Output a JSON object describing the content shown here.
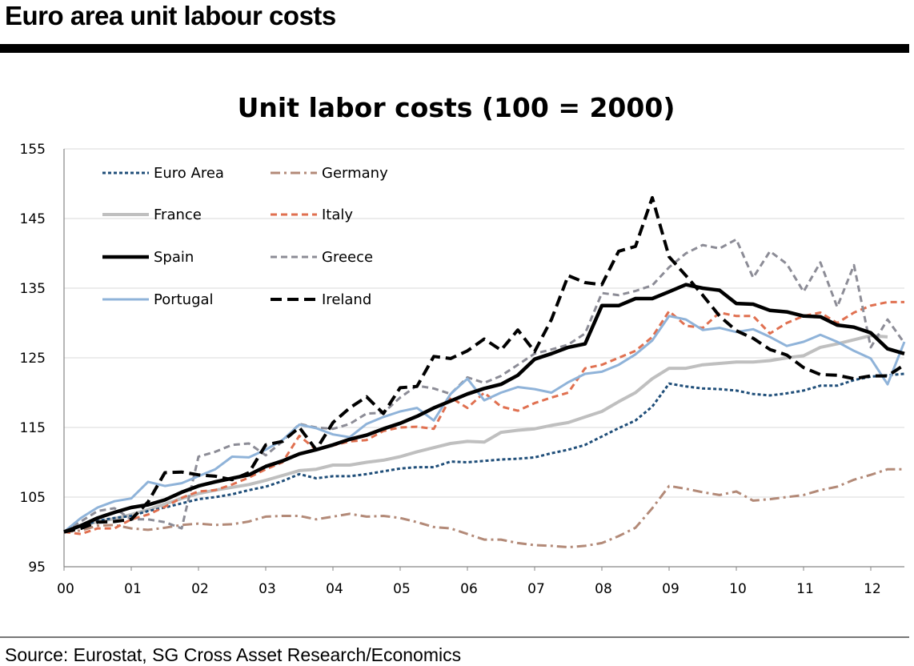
{
  "header": {
    "title": "Euro area unit labour costs"
  },
  "footer": {
    "source": "Source: Eurostat, SG Cross Asset Research/Economics"
  },
  "chart_data": {
    "type": "line",
    "title": "Unit labor costs (100 = 2000)",
    "xlabel": "",
    "ylabel": "",
    "xlim": [
      0,
      12.5
    ],
    "ylim": [
      95,
      155
    ],
    "y_ticks": [
      95,
      105,
      115,
      125,
      135,
      145,
      155
    ],
    "x_ticks": [
      0,
      1,
      2,
      3,
      4,
      5,
      6,
      7,
      8,
      9,
      10,
      11,
      12
    ],
    "x_tick_labels": [
      "00",
      "01",
      "02",
      "03",
      "04",
      "05",
      "06",
      "07",
      "08",
      "09",
      "10",
      "11",
      "12"
    ],
    "grid": "horizontal",
    "legend": "top-left",
    "series": [
      {
        "name": "Euro Area",
        "color": "#1f4e79",
        "style": "dotted",
        "width": 3,
        "x": [
          0,
          0.25,
          0.5,
          0.75,
          1,
          1.25,
          1.5,
          1.75,
          2,
          2.25,
          2.5,
          2.75,
          3,
          3.25,
          3.5,
          3.75,
          4,
          4.25,
          4.5,
          4.75,
          5,
          5.25,
          5.5,
          5.75,
          6,
          6.25,
          6.5,
          6.75,
          7,
          7.25,
          7.5,
          7.75,
          8,
          8.25,
          8.5,
          8.75,
          9,
          9.25,
          9.5,
          9.75,
          10,
          10.25,
          10.5,
          10.75,
          11,
          11.25,
          11.5,
          11.75,
          12,
          12.25,
          12.5
        ],
        "y": [
          100,
          100.8,
          101.6,
          102,
          102.3,
          103,
          103.5,
          104.1,
          104.7,
          105,
          105.4,
          106,
          106.5,
          107.3,
          108.3,
          107.7,
          108,
          108,
          108.3,
          108.7,
          109.1,
          109.3,
          109.3,
          110.1,
          110,
          110.2,
          110.4,
          110.5,
          110.7,
          111.3,
          111.8,
          112.5,
          113.7,
          114.9,
          116,
          118,
          121.3,
          120.9,
          120.6,
          120.5,
          120.3,
          119.8,
          119.6,
          119.9,
          120.3,
          121,
          121,
          121.8,
          122.3,
          122.5,
          122.7
        ]
      },
      {
        "name": "Germany",
        "color": "#b38a78",
        "style": "dashdot",
        "width": 3,
        "x": [
          0,
          0.25,
          0.5,
          0.75,
          1,
          1.25,
          1.5,
          1.75,
          2,
          2.25,
          2.5,
          2.75,
          3,
          3.25,
          3.5,
          3.75,
          4,
          4.25,
          4.5,
          4.75,
          5,
          5.25,
          5.5,
          5.75,
          6,
          6.25,
          6.5,
          6.75,
          7,
          7.25,
          7.5,
          7.75,
          8,
          8.25,
          8.5,
          8.75,
          9,
          9.25,
          9.5,
          9.75,
          10,
          10.25,
          10.5,
          10.75,
          11,
          11.25,
          11.5,
          11.75,
          12,
          12.25,
          12.5
        ],
        "y": [
          100,
          100.2,
          100.9,
          101,
          100.5,
          100.3,
          100.6,
          101,
          101.2,
          101,
          101.1,
          101.5,
          102.2,
          102.3,
          102.3,
          101.8,
          102.2,
          102.6,
          102.2,
          102.3,
          102,
          101.4,
          100.7,
          100.5,
          99.7,
          98.9,
          98.9,
          98.4,
          98.1,
          98,
          97.8,
          98,
          98.4,
          99.4,
          100.6,
          103.4,
          106.6,
          106.2,
          105.7,
          105.3,
          105.8,
          104.5,
          104.7,
          105,
          105.3,
          106,
          106.5,
          107.5,
          108.2,
          109,
          109
        ]
      },
      {
        "name": "France",
        "color": "#bfbfbf",
        "style": "solid",
        "width": 4,
        "x": [
          0,
          0.25,
          0.5,
          0.75,
          1,
          1.25,
          1.5,
          1.75,
          2,
          2.25,
          2.5,
          2.75,
          3,
          3.25,
          3.5,
          3.75,
          4,
          4.25,
          4.5,
          4.75,
          5,
          5.25,
          5.5,
          5.75,
          6,
          6.25,
          6.5,
          6.75,
          7,
          7.25,
          7.5,
          7.75,
          8,
          8.25,
          8.5,
          8.75,
          9,
          9.25,
          9.5,
          9.75,
          10,
          10.25,
          10.5,
          10.75,
          11,
          11.25,
          11.5,
          11.75,
          12,
          12.25
        ],
        "y": [
          100,
          100.8,
          101.5,
          101.9,
          102.5,
          103.2,
          104,
          104.8,
          105.5,
          106,
          106.4,
          106.8,
          107.4,
          108.1,
          108.8,
          109,
          109.6,
          109.6,
          110,
          110.3,
          110.8,
          111.5,
          112.1,
          112.7,
          113,
          112.9,
          114.3,
          114.6,
          114.8,
          115.3,
          115.7,
          116.5,
          117.3,
          118.7,
          120,
          122,
          123.5,
          123.5,
          124,
          124.2,
          124.4,
          124.4,
          124.6,
          125,
          125.3,
          126.5,
          127,
          127.6,
          128.2,
          128
        ]
      },
      {
        "name": "Italy",
        "color": "#e07050",
        "style": "dashed",
        "width": 3,
        "x": [
          0,
          0.25,
          0.5,
          0.75,
          1,
          1.25,
          1.5,
          1.75,
          2,
          2.25,
          2.5,
          2.75,
          3,
          3.25,
          3.5,
          3.75,
          4,
          4.25,
          4.5,
          4.75,
          5,
          5.25,
          5.5,
          5.75,
          6,
          6.25,
          6.5,
          6.75,
          7,
          7.25,
          7.5,
          7.75,
          8,
          8.25,
          8.5,
          8.75,
          9,
          9.25,
          9.5,
          9.75,
          10,
          10.25,
          10.5,
          10.75,
          11,
          11.25,
          11.5,
          11.75,
          12,
          12.25,
          12.5
        ],
        "y": [
          100,
          99.7,
          100.5,
          100.5,
          101.8,
          102.5,
          103.6,
          104.9,
          105.8,
          106,
          106.8,
          107.8,
          109,
          110,
          113.8,
          111.8,
          112.4,
          113,
          113.2,
          114.5,
          115,
          115.1,
          114.8,
          119.3,
          117.8,
          120,
          118,
          117.4,
          118.5,
          119.3,
          120,
          123.5,
          124,
          125,
          126,
          128,
          131.7,
          129.6,
          129.3,
          131.5,
          131,
          131,
          128.5,
          130,
          131,
          131.5,
          130,
          131.5,
          132.5,
          133,
          133
        ]
      },
      {
        "name": "Spain",
        "color": "#000000",
        "style": "solid",
        "width": 4.5,
        "x": [
          0,
          0.25,
          0.5,
          0.75,
          1,
          1.25,
          1.5,
          1.75,
          2,
          2.25,
          2.5,
          2.75,
          3,
          3.25,
          3.5,
          3.75,
          4,
          4.25,
          4.5,
          4.75,
          5,
          5.25,
          5.5,
          5.75,
          6,
          6.25,
          6.5,
          6.75,
          7,
          7.25,
          7.5,
          7.75,
          8,
          8.25,
          8.5,
          8.75,
          9,
          9.25,
          9.5,
          9.75,
          10,
          10.25,
          10.5,
          10.75,
          11,
          11.25,
          11.5,
          11.75,
          12,
          12.25,
          12.5
        ],
        "y": [
          100,
          100.9,
          102,
          102.8,
          103.5,
          103.9,
          104.6,
          105.7,
          106.6,
          107.2,
          107.7,
          108.2,
          109.4,
          110.2,
          111.2,
          111.8,
          112.5,
          113.3,
          113.9,
          114.8,
          115.6,
          116.6,
          117.8,
          118.8,
          119.8,
          120.6,
          121.2,
          122.5,
          124.8,
          125.6,
          126.5,
          127,
          132.5,
          132.5,
          133.5,
          133.5,
          134.5,
          135.5,
          135,
          134.7,
          132.8,
          132.7,
          131.8,
          131.6,
          131,
          130.9,
          129.7,
          129.4,
          128.6,
          126.3,
          125.6
        ]
      },
      {
        "name": "Greece",
        "color": "#8c8c96",
        "style": "dashed",
        "width": 3,
        "x": [
          0,
          0.25,
          0.5,
          0.75,
          1,
          1.25,
          1.5,
          1.75,
          2,
          2.25,
          2.5,
          2.75,
          3,
          3.25,
          3.5,
          3.75,
          4,
          4.25,
          4.5,
          4.75,
          5,
          5.25,
          5.5,
          5.75,
          6,
          6.25,
          6.5,
          6.75,
          7,
          7.25,
          7.5,
          7.75,
          8,
          8.25,
          8.5,
          8.75,
          9,
          9.25,
          9.5,
          9.75,
          10,
          10.25,
          10.5,
          10.75,
          11,
          11.25,
          11.5,
          11.75,
          12,
          12.25,
          12.5
        ],
        "y": [
          100,
          101.5,
          103,
          103.4,
          101.8,
          101.8,
          101.4,
          100.5,
          110.8,
          111.5,
          112.5,
          112.7,
          111,
          113,
          115.5,
          115,
          114.8,
          115.5,
          117,
          117.1,
          119.3,
          121,
          120.6,
          119.8,
          122.2,
          121.4,
          122.4,
          124,
          125.6,
          126.2,
          126.9,
          128.5,
          134.3,
          134,
          134.6,
          135.4,
          138,
          140,
          141.2,
          140.7,
          142,
          136.5,
          140.3,
          138.5,
          134.5,
          138.7,
          132.3,
          138.3,
          126.5,
          130.5,
          127.1
        ]
      },
      {
        "name": "Portugal",
        "color": "#8fb3d9",
        "style": "solid",
        "width": 3,
        "x": [
          0,
          0.25,
          0.5,
          0.75,
          1,
          1.25,
          1.5,
          1.75,
          2,
          2.25,
          2.5,
          2.75,
          3,
          3.25,
          3.5,
          3.75,
          4,
          4.25,
          4.5,
          4.75,
          5,
          5.25,
          5.5,
          5.75,
          6,
          6.25,
          6.5,
          6.75,
          7,
          7.25,
          7.5,
          7.75,
          8,
          8.25,
          8.5,
          8.75,
          9,
          9.25,
          9.5,
          9.75,
          10,
          10.25,
          10.5,
          10.75,
          11,
          11.25,
          11.5,
          11.75,
          12,
          12.25,
          12.5
        ],
        "y": [
          100,
          102,
          103.5,
          104.4,
          104.8,
          107.2,
          106.6,
          107,
          108,
          109,
          110.8,
          110.7,
          111.8,
          113.2,
          115.4,
          114.9,
          114,
          113.6,
          115.5,
          116.5,
          117.3,
          117.8,
          116,
          119.8,
          122,
          118.9,
          120,
          120.8,
          120.5,
          120,
          121.5,
          122.7,
          123,
          124,
          125.5,
          127.5,
          131,
          130.5,
          129,
          129.3,
          128.7,
          129.1,
          128,
          126.7,
          127.3,
          128.3,
          127.3,
          126,
          124.9,
          121.2,
          127.3
        ]
      },
      {
        "name": "Ireland",
        "color": "#000000",
        "style": "dashed",
        "width": 4,
        "x": [
          0,
          0.25,
          0.5,
          0.75,
          1,
          1.25,
          1.5,
          1.75,
          2,
          2.25,
          2.5,
          2.75,
          3,
          3.25,
          3.5,
          3.75,
          4,
          4.25,
          4.5,
          4.75,
          5,
          5.25,
          5.5,
          5.75,
          6,
          6.25,
          6.5,
          6.75,
          7,
          7.25,
          7.5,
          7.75,
          8,
          8.25,
          8.5,
          8.75,
          9,
          9.25,
          9.5,
          9.75,
          10,
          10.25,
          10.5,
          10.75,
          11,
          11.25,
          11.5,
          11.75,
          12,
          12.25,
          12.5
        ],
        "y": [
          100,
          100.5,
          101.4,
          101.5,
          101.8,
          104.3,
          108.5,
          108.6,
          108.2,
          108,
          107.5,
          108.5,
          112.5,
          113,
          115,
          111.8,
          115.7,
          117.8,
          119.4,
          117,
          120.7,
          120.9,
          125.2,
          124.9,
          126,
          127.7,
          126.1,
          129,
          125.9,
          130.5,
          136.8,
          135.8,
          135.5,
          140.3,
          141,
          148,
          139.5,
          136.8,
          134,
          131,
          128.9,
          127.8,
          126.2,
          125.4,
          123.6,
          122.6,
          122.5,
          122,
          122.4,
          122.4,
          124
        ]
      }
    ]
  }
}
